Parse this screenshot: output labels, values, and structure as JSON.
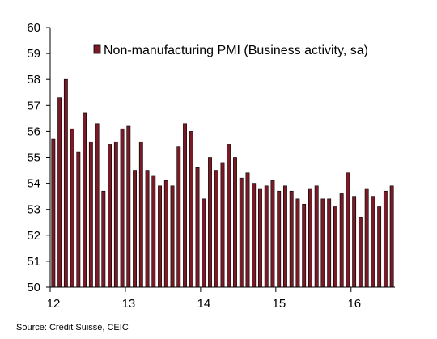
{
  "chart_data": {
    "type": "bar",
    "series": [
      {
        "name": "Non-manufacturing PMI (Business activity, sa)",
        "color": "#7a1a26",
        "values": [
          55.7,
          57.3,
          58.0,
          56.1,
          55.2,
          56.7,
          55.6,
          56.3,
          53.7,
          55.5,
          55.6,
          56.1,
          56.2,
          54.5,
          55.6,
          54.5,
          54.3,
          53.9,
          54.1,
          53.9,
          55.4,
          56.3,
          56.0,
          54.6,
          53.4,
          55.0,
          54.5,
          54.8,
          55.5,
          55.0,
          54.2,
          54.4,
          54.0,
          53.8,
          53.9,
          54.1,
          53.7,
          53.9,
          53.7,
          53.4,
          53.2,
          53.8,
          53.9,
          53.4,
          53.4,
          53.1,
          53.6,
          54.4,
          53.5,
          52.7,
          53.8,
          53.5,
          53.1,
          53.7,
          53.9
        ]
      }
    ],
    "x_tick_labels": [
      "12",
      "13",
      "14",
      "15",
      "16"
    ],
    "ylim": [
      50,
      60
    ],
    "y_ticks": [
      "50",
      "51",
      "52",
      "53",
      "54",
      "55",
      "56",
      "57",
      "58",
      "59",
      "60"
    ],
    "grid": false,
    "legend_position": "top"
  },
  "source_text": "Source: Credit Suisse, CEIC"
}
